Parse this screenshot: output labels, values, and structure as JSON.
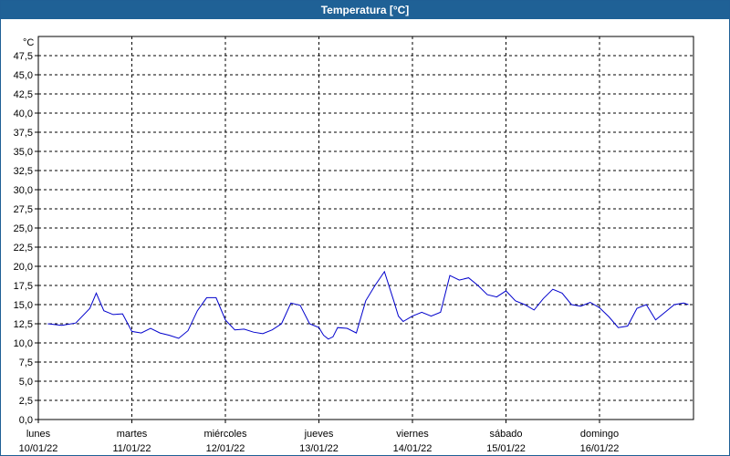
{
  "window": {
    "title": "Temperatura [°C]"
  },
  "chart_data": {
    "type": "line",
    "title": "Temperatura [°C]",
    "ylabel": "°C",
    "xlabel": "",
    "ylim": [
      0,
      50
    ],
    "grid": true,
    "y_ticks": [
      "0,0",
      "2,5",
      "5,0",
      "7,5",
      "10,0",
      "12,5",
      "15,0",
      "17,5",
      "20,0",
      "22,5",
      "25,0",
      "27,5",
      "30,0",
      "32,5",
      "35,0",
      "37,5",
      "40,0",
      "42,5",
      "45,0",
      "47,5"
    ],
    "x_ticks": [
      {
        "day": "lunes",
        "date": "10/01/22"
      },
      {
        "day": "martes",
        "date": "11/01/22"
      },
      {
        "day": "miércoles",
        "date": "12/01/22"
      },
      {
        "day": "jueves",
        "date": "13/01/22"
      },
      {
        "day": "viernes",
        "date": "14/01/22"
      },
      {
        "day": "sábado",
        "date": "15/01/22"
      },
      {
        "day": "domingo",
        "date": "16/01/22"
      }
    ],
    "line_color": "#0000cc",
    "series": [
      {
        "x_unit": "days since 10/01/22 00:00",
        "x": [
          0.1,
          0.25,
          0.4,
          0.55,
          0.62,
          0.7,
          0.8,
          0.9,
          1.0,
          1.1,
          1.2,
          1.3,
          1.4,
          1.5,
          1.6,
          1.7,
          1.8,
          1.9,
          2.0,
          2.1,
          2.2,
          2.3,
          2.4,
          2.5,
          2.6,
          2.7,
          2.8,
          2.9,
          3.0,
          3.05,
          3.1,
          3.15,
          3.2,
          3.3,
          3.4,
          3.5,
          3.6,
          3.7,
          3.8,
          3.85,
          3.9,
          4.0,
          4.1,
          4.2,
          4.3,
          4.4,
          4.5,
          4.6,
          4.7,
          4.8,
          4.9,
          5.0,
          5.1,
          5.2,
          5.3,
          5.4,
          5.5,
          5.6,
          5.7,
          5.8,
          5.9,
          6.0,
          6.1,
          6.2,
          6.3,
          6.4,
          6.5,
          6.6,
          6.7,
          6.8,
          6.9,
          6.95
        ],
        "y": [
          12.5,
          12.3,
          12.6,
          14.5,
          16.5,
          14.2,
          13.7,
          13.8,
          11.5,
          11.3,
          11.9,
          11.3,
          11.0,
          10.6,
          11.6,
          14.2,
          15.9,
          15.9,
          13.0,
          11.7,
          11.8,
          11.4,
          11.2,
          11.7,
          12.5,
          15.2,
          14.9,
          12.5,
          12.0,
          11.0,
          10.5,
          10.8,
          12.0,
          11.9,
          11.3,
          15.5,
          17.5,
          19.3,
          15.5,
          13.5,
          12.8,
          13.5,
          14.0,
          13.5,
          14.0,
          18.8,
          18.2,
          18.5,
          17.5,
          16.3,
          16.0,
          16.8,
          15.5,
          15.0,
          14.3,
          15.8,
          17.0,
          16.5,
          15.0,
          14.8,
          15.3,
          14.6,
          13.4,
          12.0,
          12.2,
          14.5,
          15.0,
          13.0,
          14.0,
          15.0,
          15.2,
          15.0
        ]
      }
    ]
  }
}
